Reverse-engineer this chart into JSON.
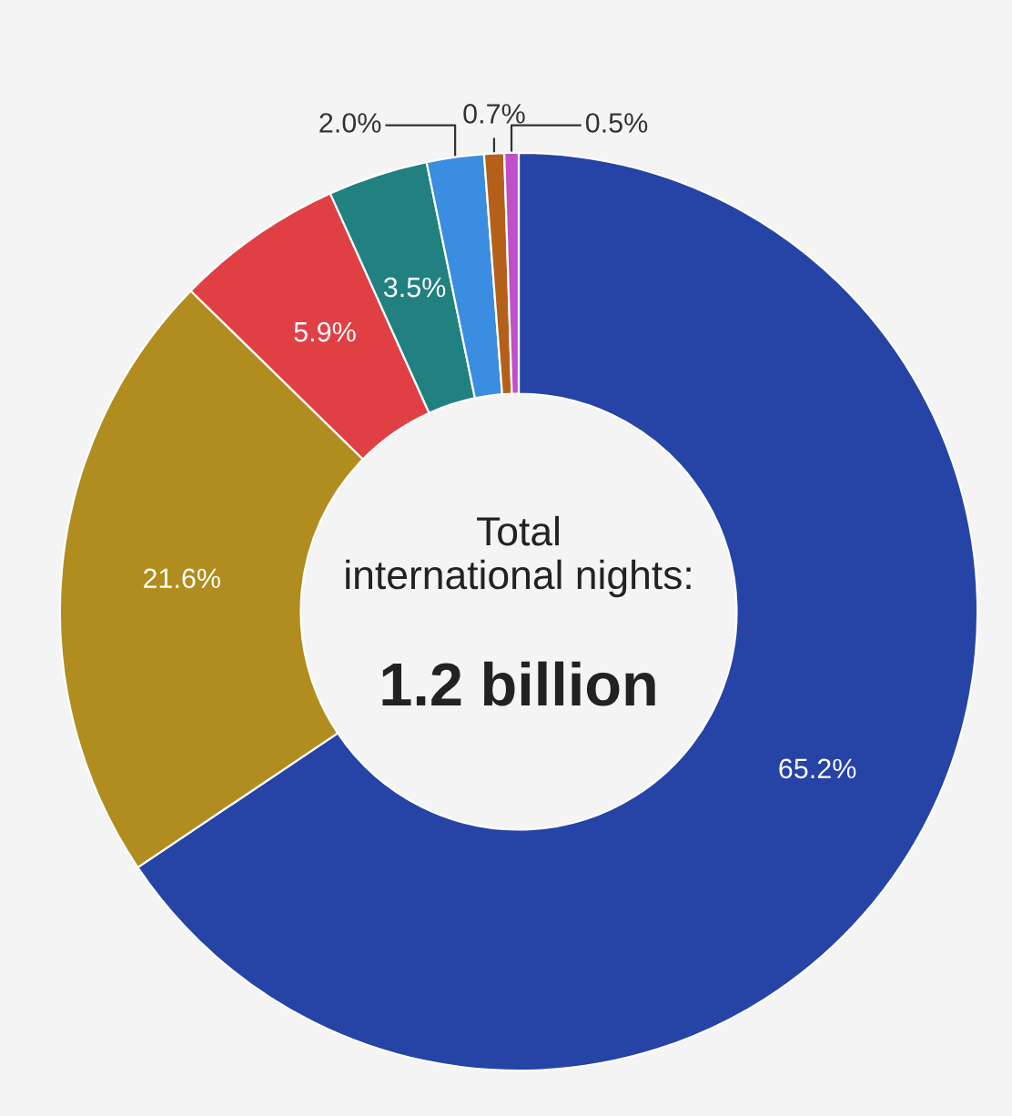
{
  "chart_data": {
    "type": "donut",
    "categories": [
      null,
      null,
      null,
      null,
      null,
      null,
      null
    ],
    "values": [
      65.2,
      21.6,
      5.9,
      3.5,
      2.0,
      0.7,
      0.5
    ],
    "colors": [
      "#2643a6",
      "#b08d1e",
      "#e04044",
      "#218080",
      "#3a8de0",
      "#b5601a",
      "#c050c8"
    ],
    "value_labels": [
      "65.2%",
      "21.6%",
      "5.9%",
      "3.5%",
      "2.0%",
      "0.7%",
      "0.5%"
    ],
    "annotations": [
      "Total\ninternational nights:",
      "1.2 billion"
    ],
    "legend": false
  }
}
